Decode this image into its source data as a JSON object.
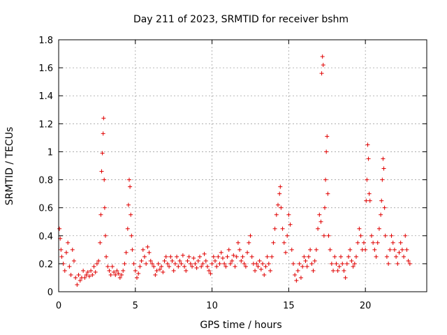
{
  "chart_data": {
    "type": "scatter",
    "title": "Day 211 of 2023, SRMTID for receiver bshm",
    "xlabel": "GPS time / hours",
    "ylabel": "SRMTID / TECUs",
    "xlim": [
      0,
      24
    ],
    "ylim": [
      0,
      1.8
    ],
    "xticks": [
      0,
      5,
      10,
      15,
      20
    ],
    "xtick_labels": [
      "0",
      "5",
      "10",
      "15",
      "20"
    ],
    "yticks": [
      0,
      0.2,
      0.4,
      0.6,
      0.8,
      1,
      1.2,
      1.4,
      1.6,
      1.8
    ],
    "ytick_labels": [
      "0",
      "0.2",
      "0.4",
      "0.6",
      "0.8",
      "1",
      "1.2",
      "1.4",
      "1.6",
      "1.8"
    ],
    "grid": true,
    "marker": "+",
    "color": "#e00000",
    "series": [
      {
        "name": "SRMTID",
        "points": [
          [
            0.05,
            0.45
          ],
          [
            0.1,
            0.38
          ],
          [
            0.15,
            0.3
          ],
          [
            0.2,
            0.25
          ],
          [
            0.3,
            0.2
          ],
          [
            0.4,
            0.15
          ],
          [
            0.5,
            0.28
          ],
          [
            0.6,
            0.35
          ],
          [
            0.7,
            0.18
          ],
          [
            0.8,
            0.12
          ],
          [
            0.9,
            0.3
          ],
          [
            1.0,
            0.22
          ],
          [
            1.1,
            0.1
          ],
          [
            1.2,
            0.05
          ],
          [
            1.3,
            0.12
          ],
          [
            1.4,
            0.08
          ],
          [
            1.5,
            0.1
          ],
          [
            1.6,
            0.15
          ],
          [
            1.7,
            0.1
          ],
          [
            1.8,
            0.12
          ],
          [
            1.9,
            0.14
          ],
          [
            2.0,
            0.11
          ],
          [
            2.1,
            0.15
          ],
          [
            2.2,
            0.12
          ],
          [
            2.3,
            0.18
          ],
          [
            2.4,
            0.14
          ],
          [
            2.5,
            0.2
          ],
          [
            2.6,
            0.22
          ],
          [
            2.7,
            0.35
          ],
          [
            2.75,
            0.55
          ],
          [
            2.8,
            0.86
          ],
          [
            2.85,
            0.99
          ],
          [
            2.9,
            1.13
          ],
          [
            2.93,
            1.24
          ],
          [
            2.97,
            0.8
          ],
          [
            3.0,
            0.6
          ],
          [
            3.05,
            0.4
          ],
          [
            3.1,
            0.25
          ],
          [
            3.2,
            0.18
          ],
          [
            3.3,
            0.15
          ],
          [
            3.4,
            0.12
          ],
          [
            3.5,
            0.18
          ],
          [
            3.6,
            0.14
          ],
          [
            3.7,
            0.12
          ],
          [
            3.8,
            0.15
          ],
          [
            3.9,
            0.13
          ],
          [
            4.0,
            0.1
          ],
          [
            4.1,
            0.12
          ],
          [
            4.2,
            0.15
          ],
          [
            4.3,
            0.2
          ],
          [
            4.4,
            0.28
          ],
          [
            4.5,
            0.45
          ],
          [
            4.55,
            0.62
          ],
          [
            4.6,
            0.8
          ],
          [
            4.65,
            0.75
          ],
          [
            4.7,
            0.55
          ],
          [
            4.75,
            0.4
          ],
          [
            4.8,
            0.3
          ],
          [
            4.9,
            0.2
          ],
          [
            5.0,
            0.15
          ],
          [
            5.1,
            0.1
          ],
          [
            5.2,
            0.13
          ],
          [
            5.3,
            0.18
          ],
          [
            5.4,
            0.22
          ],
          [
            5.5,
            0.3
          ],
          [
            5.6,
            0.25
          ],
          [
            5.7,
            0.2
          ],
          [
            5.8,
            0.32
          ],
          [
            5.9,
            0.28
          ],
          [
            6.0,
            0.22
          ],
          [
            6.1,
            0.2
          ],
          [
            6.2,
            0.18
          ],
          [
            6.3,
            0.12
          ],
          [
            6.4,
            0.15
          ],
          [
            6.5,
            0.2
          ],
          [
            6.6,
            0.16
          ],
          [
            6.7,
            0.18
          ],
          [
            6.8,
            0.14
          ],
          [
            6.9,
            0.22
          ],
          [
            7.0,
            0.25
          ],
          [
            7.1,
            0.2
          ],
          [
            7.2,
            0.18
          ],
          [
            7.3,
            0.25
          ],
          [
            7.4,
            0.22
          ],
          [
            7.5,
            0.15
          ],
          [
            7.6,
            0.2
          ],
          [
            7.7,
            0.25
          ],
          [
            7.8,
            0.18
          ],
          [
            7.9,
            0.22
          ],
          [
            8.0,
            0.2
          ],
          [
            8.1,
            0.26
          ],
          [
            8.2,
            0.18
          ],
          [
            8.3,
            0.15
          ],
          [
            8.4,
            0.22
          ],
          [
            8.5,
            0.25
          ],
          [
            8.6,
            0.2
          ],
          [
            8.7,
            0.18
          ],
          [
            8.8,
            0.24
          ],
          [
            8.9,
            0.2
          ],
          [
            9.0,
            0.17
          ],
          [
            9.1,
            0.22
          ],
          [
            9.2,
            0.25
          ],
          [
            9.3,
            0.18
          ],
          [
            9.4,
            0.2
          ],
          [
            9.5,
            0.27
          ],
          [
            9.6,
            0.22
          ],
          [
            9.7,
            0.18
          ],
          [
            9.8,
            0.15
          ],
          [
            9.9,
            0.13
          ],
          [
            10.0,
            0.2
          ],
          [
            10.1,
            0.25
          ],
          [
            10.2,
            0.22
          ],
          [
            10.3,
            0.18
          ],
          [
            10.4,
            0.25
          ],
          [
            10.5,
            0.2
          ],
          [
            10.6,
            0.28
          ],
          [
            10.7,
            0.24
          ],
          [
            10.8,
            0.2
          ],
          [
            10.9,
            0.18
          ],
          [
            11.0,
            0.25
          ],
          [
            11.1,
            0.3
          ],
          [
            11.2,
            0.2
          ],
          [
            11.3,
            0.22
          ],
          [
            11.4,
            0.26
          ],
          [
            11.5,
            0.18
          ],
          [
            11.6,
            0.25
          ],
          [
            11.7,
            0.35
          ],
          [
            11.8,
            0.3
          ],
          [
            11.9,
            0.22
          ],
          [
            12.0,
            0.25
          ],
          [
            12.1,
            0.2
          ],
          [
            12.2,
            0.18
          ],
          [
            12.3,
            0.28
          ],
          [
            12.4,
            0.35
          ],
          [
            12.5,
            0.4
          ],
          [
            12.6,
            0.25
          ],
          [
            12.7,
            0.2
          ],
          [
            12.8,
            0.15
          ],
          [
            12.9,
            0.2
          ],
          [
            13.0,
            0.18
          ],
          [
            13.1,
            0.22
          ],
          [
            13.2,
            0.16
          ],
          [
            13.3,
            0.2
          ],
          [
            13.4,
            0.12
          ],
          [
            13.5,
            0.18
          ],
          [
            13.6,
            0.25
          ],
          [
            13.7,
            0.2
          ],
          [
            13.8,
            0.15
          ],
          [
            13.9,
            0.25
          ],
          [
            14.0,
            0.35
          ],
          [
            14.1,
            0.45
          ],
          [
            14.2,
            0.55
          ],
          [
            14.3,
            0.62
          ],
          [
            14.4,
            0.7
          ],
          [
            14.45,
            0.75
          ],
          [
            14.5,
            0.6
          ],
          [
            14.6,
            0.45
          ],
          [
            14.7,
            0.35
          ],
          [
            14.8,
            0.28
          ],
          [
            14.9,
            0.4
          ],
          [
            15.0,
            0.55
          ],
          [
            15.1,
            0.48
          ],
          [
            15.2,
            0.3
          ],
          [
            15.3,
            0.2
          ],
          [
            15.4,
            0.12
          ],
          [
            15.5,
            0.08
          ],
          [
            15.6,
            0.15
          ],
          [
            15.7,
            0.2
          ],
          [
            15.8,
            0.1
          ],
          [
            15.9,
            0.18
          ],
          [
            16.0,
            0.25
          ],
          [
            16.1,
            0.22
          ],
          [
            16.2,
            0.18
          ],
          [
            16.3,
            0.25
          ],
          [
            16.4,
            0.3
          ],
          [
            16.5,
            0.2
          ],
          [
            16.6,
            0.15
          ],
          [
            16.7,
            0.22
          ],
          [
            16.8,
            0.3
          ],
          [
            16.9,
            0.45
          ],
          [
            17.0,
            0.55
          ],
          [
            17.1,
            0.5
          ],
          [
            17.15,
            1.56
          ],
          [
            17.2,
            1.68
          ],
          [
            17.25,
            1.62
          ],
          [
            17.3,
            0.4
          ],
          [
            17.35,
            0.6
          ],
          [
            17.4,
            0.8
          ],
          [
            17.45,
            1.0
          ],
          [
            17.5,
            1.11
          ],
          [
            17.55,
            0.7
          ],
          [
            17.6,
            0.4
          ],
          [
            17.7,
            0.3
          ],
          [
            17.8,
            0.2
          ],
          [
            17.9,
            0.15
          ],
          [
            18.0,
            0.25
          ],
          [
            18.1,
            0.2
          ],
          [
            18.2,
            0.15
          ],
          [
            18.3,
            0.18
          ],
          [
            18.4,
            0.25
          ],
          [
            18.5,
            0.2
          ],
          [
            18.6,
            0.15
          ],
          [
            18.7,
            0.1
          ],
          [
            18.8,
            0.2
          ],
          [
            18.9,
            0.25
          ],
          [
            19.0,
            0.3
          ],
          [
            19.1,
            0.22
          ],
          [
            19.2,
            0.18
          ],
          [
            19.3,
            0.2
          ],
          [
            19.4,
            0.25
          ],
          [
            19.5,
            0.35
          ],
          [
            19.6,
            0.45
          ],
          [
            19.7,
            0.4
          ],
          [
            19.8,
            0.3
          ],
          [
            19.9,
            0.35
          ],
          [
            20.0,
            0.3
          ],
          [
            20.05,
            0.65
          ],
          [
            20.1,
            0.8
          ],
          [
            20.15,
            1.05
          ],
          [
            20.2,
            0.95
          ],
          [
            20.25,
            0.7
          ],
          [
            20.3,
            0.65
          ],
          [
            20.4,
            0.4
          ],
          [
            20.5,
            0.35
          ],
          [
            20.6,
            0.3
          ],
          [
            20.7,
            0.25
          ],
          [
            20.8,
            0.35
          ],
          [
            20.9,
            0.45
          ],
          [
            21.0,
            0.55
          ],
          [
            21.05,
            0.65
          ],
          [
            21.1,
            0.8
          ],
          [
            21.15,
            0.95
          ],
          [
            21.2,
            0.88
          ],
          [
            21.25,
            0.6
          ],
          [
            21.3,
            0.4
          ],
          [
            21.4,
            0.25
          ],
          [
            21.5,
            0.2
          ],
          [
            21.6,
            0.3
          ],
          [
            21.7,
            0.4
          ],
          [
            21.8,
            0.35
          ],
          [
            21.9,
            0.3
          ],
          [
            22.0,
            0.25
          ],
          [
            22.1,
            0.2
          ],
          [
            22.2,
            0.28
          ],
          [
            22.3,
            0.35
          ],
          [
            22.4,
            0.3
          ],
          [
            22.5,
            0.25
          ],
          [
            22.6,
            0.4
          ],
          [
            22.7,
            0.3
          ],
          [
            22.8,
            0.22
          ],
          [
            22.9,
            0.2
          ]
        ]
      }
    ]
  }
}
